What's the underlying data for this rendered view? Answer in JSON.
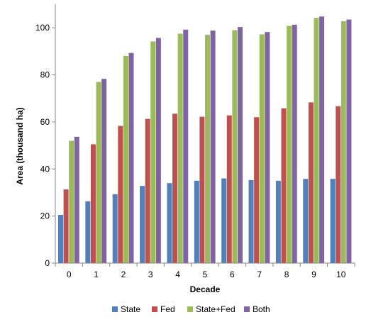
{
  "chart_data": {
    "type": "bar",
    "title": "",
    "xlabel": "Decade",
    "ylabel": "Area (thousand ha)",
    "categories": [
      "0",
      "1",
      "2",
      "3",
      "4",
      "5",
      "6",
      "7",
      "8",
      "9",
      "10"
    ],
    "ylim": [
      0,
      110
    ],
    "yticks": [
      0,
      20,
      40,
      60,
      80,
      100
    ],
    "grid": false,
    "legend_position": "bottom",
    "series": [
      {
        "name": "State",
        "color": "#4F81BD",
        "values": [
          20.5,
          26.3,
          29.3,
          32.8,
          34.0,
          35.0,
          36.0,
          35.3,
          35.0,
          35.8,
          35.8
        ]
      },
      {
        "name": "Fed",
        "color": "#C0504D",
        "values": [
          31.3,
          50.5,
          58.3,
          61.3,
          63.5,
          62.2,
          62.8,
          62.0,
          65.8,
          68.3,
          66.7
        ]
      },
      {
        "name": "State+Fed",
        "color": "#9BBB59",
        "values": [
          52.0,
          77.0,
          88.0,
          94.2,
          97.5,
          97.0,
          99.0,
          97.2,
          100.8,
          104.2,
          102.8
        ]
      },
      {
        "name": "Both",
        "color": "#8064A2",
        "values": [
          53.7,
          78.3,
          89.3,
          95.7,
          99.2,
          98.8,
          100.3,
          98.2,
          101.3,
          104.8,
          103.5
        ]
      }
    ]
  }
}
